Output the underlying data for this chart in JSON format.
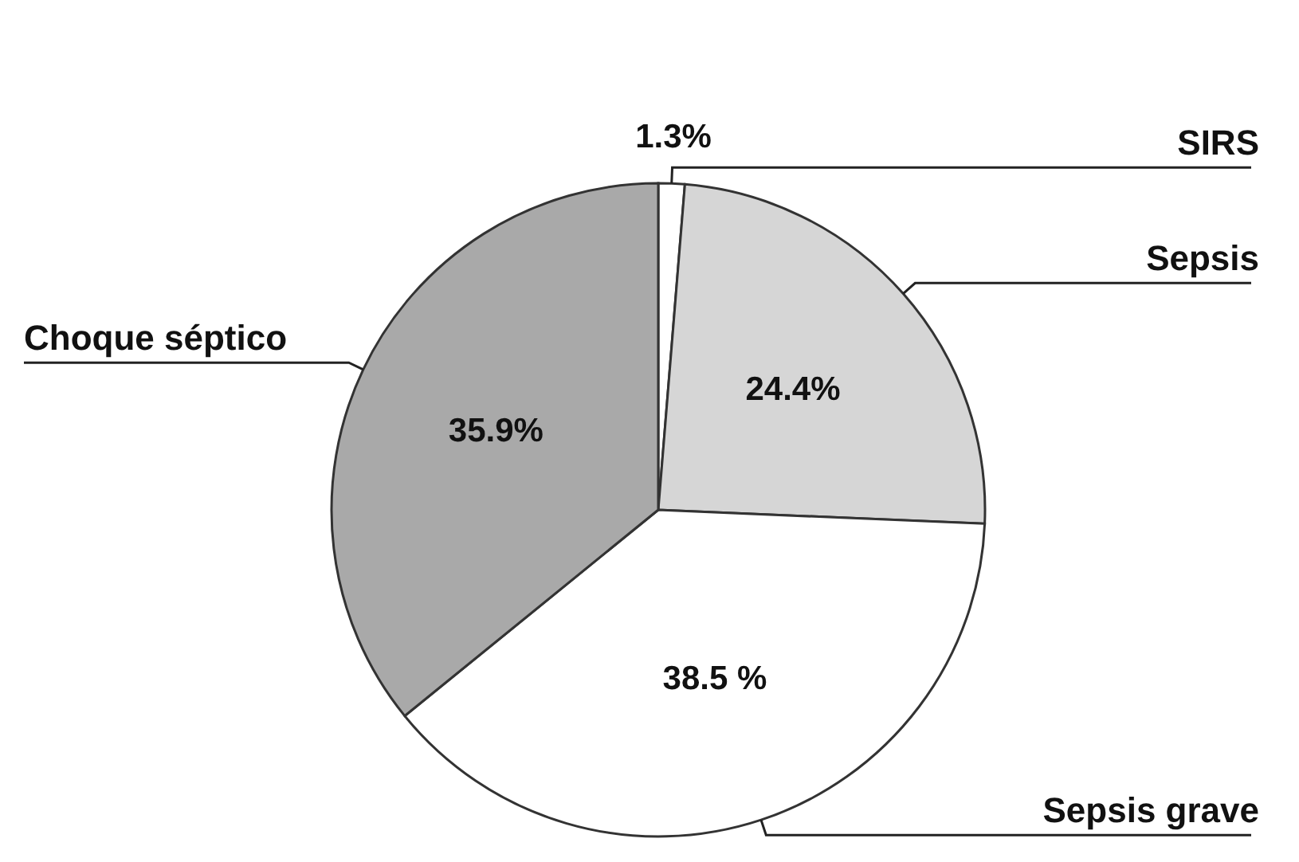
{
  "chart_data": {
    "type": "pie",
    "categories": [
      "SIRS",
      "Sepsis",
      "Sepsis grave",
      "Choque séptico"
    ],
    "values": [
      1.3,
      24.4,
      38.5,
      35.9
    ],
    "colors": [
      "#ffffff",
      "#d6d6d6",
      "#ffffff",
      "#a9a9a9"
    ],
    "value_labels": [
      "1.3%",
      "24.4%",
      "38.5 %",
      "35.9%"
    ]
  }
}
